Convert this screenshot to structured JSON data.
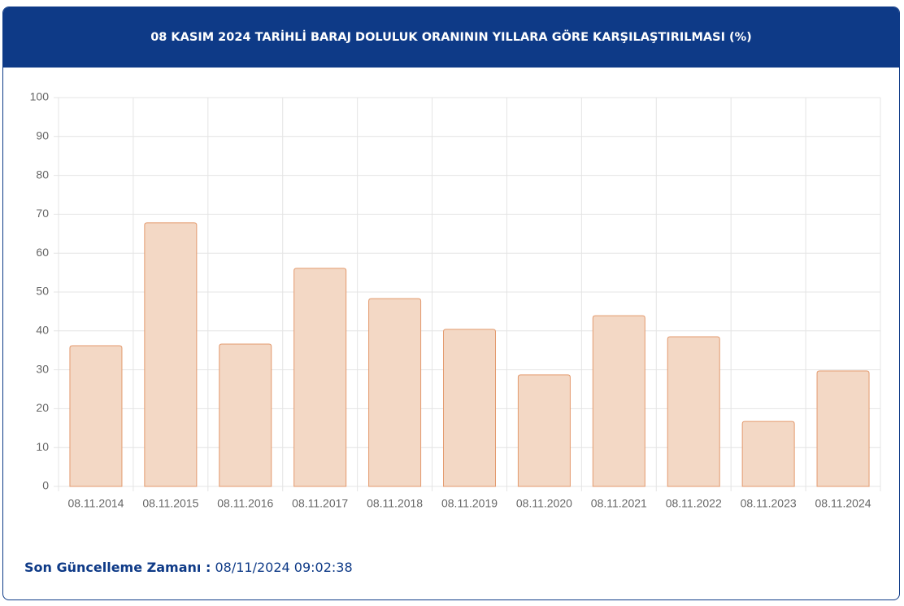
{
  "chart_data": {
    "type": "bar",
    "title": "08 KASIM 2024 TARİHLİ BARAJ DOLULUK ORANININ YILLARA GÖRE KARŞILAŞTIRILMASI (%)",
    "categories": [
      "08.11.2014",
      "08.11.2015",
      "08.11.2016",
      "08.11.2017",
      "08.11.2018",
      "08.11.2019",
      "08.11.2020",
      "08.11.2021",
      "08.11.2022",
      "08.11.2023",
      "08.11.2024"
    ],
    "values": [
      36.2,
      67.8,
      36.6,
      56.1,
      48.3,
      40.4,
      28.7,
      43.9,
      38.5,
      16.7,
      29.7
    ],
    "color": "#f3d8c5",
    "border_color": "#e39a6e",
    "ylim": [
      0,
      100
    ],
    "yticks": [
      0,
      10,
      20,
      30,
      40,
      50,
      60,
      70,
      80,
      90,
      100
    ],
    "grid": true
  },
  "footer": {
    "label": "Son Güncelleme Zamanı :",
    "value": "08/11/2024 09:02:38"
  }
}
